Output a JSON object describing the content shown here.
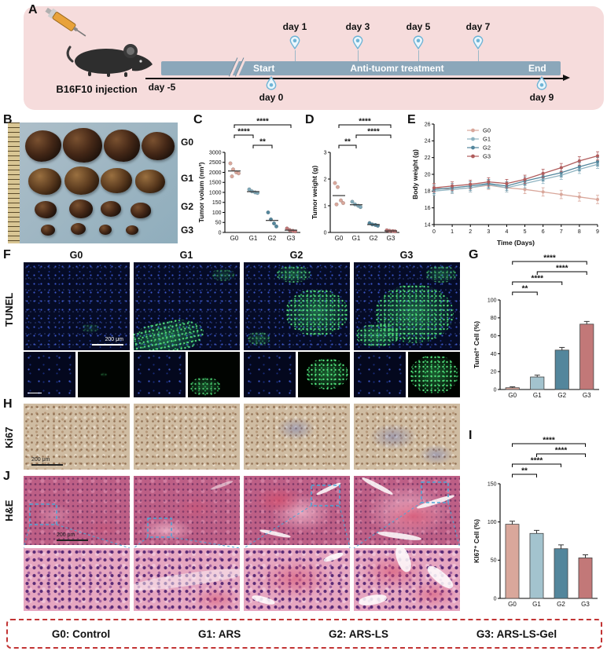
{
  "palette": {
    "g0": "#d9a79b",
    "g1": "#a3c3ce",
    "g2": "#53869c",
    "g3": "#c27878",
    "timeline_bar": "#8ba7ba",
    "panel_a_bg": "#f6dcdc",
    "pin": "#6fb4d6",
    "highlight_box": "#4aa8d8",
    "legend_dash": "#c23434"
  },
  "panels": {
    "a": {
      "letter": "A",
      "injection_label": "B16F10 injection",
      "start": "Start",
      "treatment": "Anti-tuomr treatment",
      "end": "End",
      "day_minus5": "day -5",
      "day0": "day 0",
      "day9": "day 9",
      "top_days": [
        "day 1",
        "day 3",
        "day 5",
        "day 7"
      ]
    },
    "b": {
      "letter": "B",
      "groups": [
        "G0",
        "G1",
        "G2",
        "G3"
      ]
    },
    "c": {
      "letter": "C"
    },
    "d": {
      "letter": "D"
    },
    "e": {
      "letter": "E"
    },
    "f": {
      "letter": "F",
      "row_label": "TUNEL",
      "columns": [
        "G0",
        "G1",
        "G2",
        "G3"
      ],
      "scale_bar": "200 μm"
    },
    "g": {
      "letter": "G"
    },
    "h": {
      "letter": "H",
      "row_label": "Ki67",
      "scale_bar": "200 μm"
    },
    "i": {
      "letter": "I"
    },
    "j": {
      "letter": "J",
      "row_label": "H&E",
      "scale_bar": "200 μm"
    },
    "legend": {
      "items": [
        "G0: Control",
        "G1: ARS",
        "G2: ARS-LS",
        "G3: ARS-LS-Gel"
      ]
    }
  },
  "chart_data": [
    {
      "id": "C",
      "type": "scatter",
      "ylabel": "Tumor volum (nm³)",
      "categories": [
        "G0",
        "G1",
        "G2",
        "G3"
      ],
      "yticks": [
        0,
        50,
        100,
        150,
        1000,
        1500,
        2000,
        2500,
        3000
      ],
      "series": [
        {
          "name": "G0",
          "color": "#d9a79b",
          "values": [
            2450,
            2150,
            2000,
            1950,
            1800
          ]
        },
        {
          "name": "G1",
          "color": "#7fa8b8",
          "values": [
            1150,
            1050,
            1000,
            950
          ]
        },
        {
          "name": "G2",
          "color": "#53869c",
          "values": [
            100,
            65,
            45,
            30
          ]
        },
        {
          "name": "G3",
          "color": "#c27878",
          "values": [
            20,
            12,
            8,
            5
          ]
        }
      ],
      "significance": [
        {
          "a": 0,
          "b": 3,
          "label": "****",
          "level": 0
        },
        {
          "a": 0,
          "b": 1,
          "label": "****",
          "level": 1
        },
        {
          "a": 1,
          "b": 2,
          "label": "**",
          "level": 2
        }
      ]
    },
    {
      "id": "D",
      "type": "scatter",
      "ylabel": "Tumor weight (g)",
      "categories": [
        "G0",
        "G1",
        "G2",
        "G3"
      ],
      "yticks": [
        0,
        1,
        2,
        3
      ],
      "series": [
        {
          "name": "G0",
          "color": "#d9a79b",
          "values": [
            1.85,
            1.7,
            1.2,
            1.1,
            1.05
          ]
        },
        {
          "name": "G1",
          "color": "#7fa8b8",
          "values": [
            1.15,
            1.05,
            1.0,
            0.95
          ]
        },
        {
          "name": "G2",
          "color": "#53869c",
          "values": [
            0.35,
            0.3,
            0.28,
            0.25
          ]
        },
        {
          "name": "G3",
          "color": "#c27878",
          "values": [
            0.08,
            0.06,
            0.05,
            0.04
          ]
        }
      ],
      "significance": [
        {
          "a": 0,
          "b": 3,
          "label": "****",
          "level": 0
        },
        {
          "a": 1,
          "b": 3,
          "label": "****",
          "level": 1
        },
        {
          "a": 0,
          "b": 1,
          "label": "**",
          "level": 2
        }
      ]
    },
    {
      "id": "E",
      "type": "line",
      "ylabel": "Body weight (g)",
      "xlabel": "Time (Days)",
      "x": [
        0,
        1,
        2,
        3,
        4,
        5,
        6,
        7,
        8,
        9
      ],
      "yticks": [
        14,
        16,
        18,
        20,
        22,
        24,
        26
      ],
      "error": 0.5,
      "series": [
        {
          "name": "G0",
          "color": "#d9a79b",
          "values": [
            18.4,
            18.2,
            18.4,
            18.7,
            18.4,
            18.2,
            17.9,
            17.6,
            17.3,
            17.0
          ]
        },
        {
          "name": "G1",
          "color": "#8fb4c2",
          "values": [
            18.0,
            18.2,
            18.4,
            18.8,
            18.4,
            18.9,
            19.4,
            19.9,
            20.6,
            21.2
          ]
        },
        {
          "name": "G2",
          "color": "#53869c",
          "values": [
            18.2,
            18.4,
            18.6,
            18.9,
            18.6,
            19.2,
            19.7,
            20.2,
            20.9,
            21.5
          ]
        },
        {
          "name": "G3",
          "color": "#b05c5c",
          "values": [
            18.4,
            18.6,
            18.8,
            19.1,
            18.9,
            19.4,
            20.1,
            20.8,
            21.6,
            22.2
          ]
        }
      ]
    },
    {
      "id": "G",
      "type": "bar",
      "ylabel": "Tunel⁺ Cell (%)",
      "categories": [
        "G0",
        "G1",
        "G2",
        "G3"
      ],
      "yticks": [
        0,
        20,
        40,
        60,
        80,
        100
      ],
      "values": [
        2,
        14,
        44,
        73
      ],
      "errors": [
        1,
        2,
        3,
        3
      ],
      "colors": [
        "#d9a79b",
        "#a3c3ce",
        "#53869c",
        "#c27878"
      ],
      "significance": [
        {
          "a": 0,
          "b": 3,
          "label": "****",
          "level": 0
        },
        {
          "a": 1,
          "b": 3,
          "label": "****",
          "level": 1
        },
        {
          "a": 0,
          "b": 2,
          "label": "****",
          "level": 2
        },
        {
          "a": 0,
          "b": 1,
          "label": "**",
          "level": 3
        }
      ]
    },
    {
      "id": "I",
      "type": "bar",
      "ylabel": "KI67⁺ Cell (%)",
      "categories": [
        "G0",
        "G1",
        "G2",
        "G3"
      ],
      "yticks": [
        0,
        50,
        100,
        150
      ],
      "values": [
        97,
        85,
        65,
        53
      ],
      "errors": [
        4,
        4,
        5,
        4
      ],
      "colors": [
        "#d9a79b",
        "#a3c3ce",
        "#53869c",
        "#c27878"
      ],
      "significance": [
        {
          "a": 0,
          "b": 3,
          "label": "****",
          "level": 0
        },
        {
          "a": 1,
          "b": 3,
          "label": "****",
          "level": 1
        },
        {
          "a": 0,
          "b": 2,
          "label": "****",
          "level": 2
        },
        {
          "a": 0,
          "b": 1,
          "label": "**",
          "level": 3
        }
      ]
    }
  ]
}
